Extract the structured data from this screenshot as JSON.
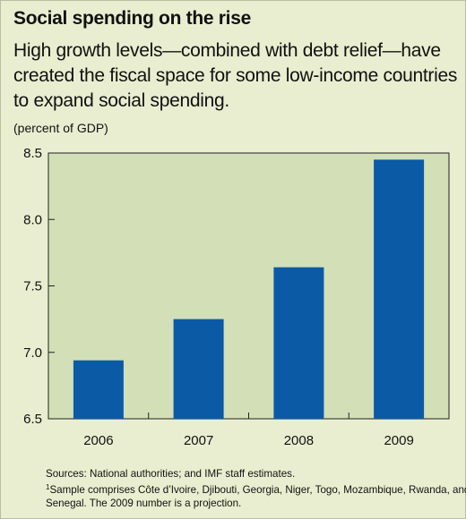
{
  "colors": {
    "panel_background": "#e9eed0",
    "plot_background": "#d2dfb7",
    "bar": "#0b5aa6"
  },
  "chart_data": {
    "type": "bar",
    "title": "Social spending on the rise",
    "subtitle": "High growth levels—combined with debt relief—have created the fiscal space for some low-income countries to expand social spending.",
    "ylabel": "(percent of GDP)",
    "xlabel": "",
    "categories": [
      "2006",
      "2007",
      "2008",
      "2009"
    ],
    "values": [
      6.94,
      7.25,
      7.64,
      8.45
    ],
    "ylim": [
      6.5,
      8.5
    ],
    "yticks": [
      "6.5",
      "7.0",
      "7.5",
      "8.0",
      "8.5"
    ],
    "grid": false,
    "legend": "none"
  },
  "notes": {
    "sources": "Sources: National authorities; and IMF staff estimates.",
    "footnote_mark": "1",
    "footnote_line1": "Sample comprises Côte d’Ivoire, Djibouti, Georgia, Niger, Togo, Mozambique, Rwanda, and",
    "footnote_line2": "Senegal. The 2009 number is a projection."
  }
}
